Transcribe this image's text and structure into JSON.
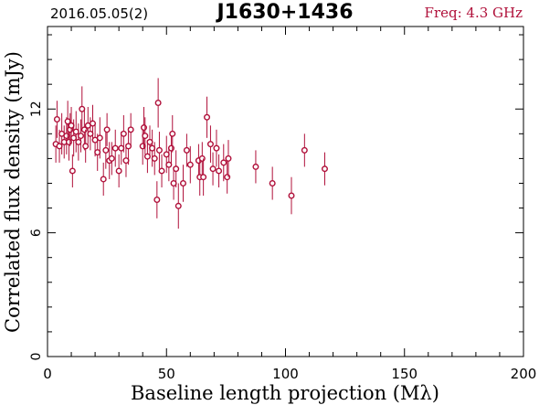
{
  "header": {
    "date": "2016.05.05(2)",
    "source": "J1630+1436",
    "freq": "Freq: 4.3 GHz"
  },
  "colors": {
    "marker": "#b0103a",
    "axis": "#000000",
    "freq_text": "#b0103a"
  },
  "chart_data": {
    "type": "scatter",
    "title": "J1630+1436",
    "xlabel": "Baseline length projection (Mλ)",
    "ylabel": "Correlated flux density (mJy)",
    "xlim": [
      0,
      200
    ],
    "ylim": [
      0,
      16
    ],
    "x_ticks": [
      "0",
      "50",
      "100",
      "150",
      "200"
    ],
    "y_ticks": [
      "0",
      "6",
      "12"
    ],
    "grid": false,
    "points": [
      {
        "x": 3.5,
        "y": 10.3,
        "err": 0.9
      },
      {
        "x": 4.0,
        "y": 11.5,
        "err": 0.9
      },
      {
        "x": 5.0,
        "y": 10.2,
        "err": 0.8
      },
      {
        "x": 6.0,
        "y": 10.8,
        "err": 1.0
      },
      {
        "x": 7.0,
        "y": 10.4,
        "err": 0.8
      },
      {
        "x": 8.0,
        "y": 10.7,
        "err": 0.9
      },
      {
        "x": 8.5,
        "y": 11.4,
        "err": 1.0
      },
      {
        "x": 9.0,
        "y": 10.4,
        "err": 0.9
      },
      {
        "x": 9.5,
        "y": 11.0,
        "err": 0.8
      },
      {
        "x": 10.0,
        "y": 11.2,
        "err": 0.9
      },
      {
        "x": 10.5,
        "y": 9.0,
        "err": 0.8
      },
      {
        "x": 11.0,
        "y": 10.6,
        "err": 0.9
      },
      {
        "x": 12.0,
        "y": 10.9,
        "err": 1.0
      },
      {
        "x": 13.0,
        "y": 10.4,
        "err": 0.9
      },
      {
        "x": 14.0,
        "y": 10.7,
        "err": 0.8
      },
      {
        "x": 14.5,
        "y": 12.0,
        "err": 1.1
      },
      {
        "x": 15.5,
        "y": 11.0,
        "err": 1.0
      },
      {
        "x": 16.0,
        "y": 10.2,
        "err": 0.8
      },
      {
        "x": 17.0,
        "y": 11.2,
        "err": 0.9
      },
      {
        "x": 18.0,
        "y": 10.8,
        "err": 0.8
      },
      {
        "x": 19.0,
        "y": 11.3,
        "err": 0.9
      },
      {
        "x": 20.0,
        "y": 10.5,
        "err": 0.8
      },
      {
        "x": 21.0,
        "y": 9.9,
        "err": 0.9
      },
      {
        "x": 22.0,
        "y": 10.6,
        "err": 1.0
      },
      {
        "x": 23.5,
        "y": 8.6,
        "err": 0.8
      },
      {
        "x": 24.5,
        "y": 10.0,
        "err": 0.9
      },
      {
        "x": 25.0,
        "y": 11.0,
        "err": 0.8
      },
      {
        "x": 26.0,
        "y": 9.5,
        "err": 0.9
      },
      {
        "x": 27.0,
        "y": 9.6,
        "err": 0.8
      },
      {
        "x": 28.5,
        "y": 10.1,
        "err": 0.9
      },
      {
        "x": 30.0,
        "y": 9.0,
        "err": 0.8
      },
      {
        "x": 31.0,
        "y": 10.1,
        "err": 0.8
      },
      {
        "x": 32.0,
        "y": 10.8,
        "err": 0.9
      },
      {
        "x": 33.0,
        "y": 9.5,
        "err": 0.8
      },
      {
        "x": 34.0,
        "y": 10.2,
        "err": 0.9
      },
      {
        "x": 35.0,
        "y": 11.0,
        "err": 0.8
      },
      {
        "x": 40.0,
        "y": 10.2,
        "err": 0.9
      },
      {
        "x": 40.5,
        "y": 11.1,
        "err": 1.0
      },
      {
        "x": 41.0,
        "y": 10.7,
        "err": 0.9
      },
      {
        "x": 42.0,
        "y": 9.7,
        "err": 0.8
      },
      {
        "x": 43.0,
        "y": 10.4,
        "err": 0.8
      },
      {
        "x": 44.0,
        "y": 10.1,
        "err": 0.9
      },
      {
        "x": 45.0,
        "y": 9.6,
        "err": 0.8
      },
      {
        "x": 46.0,
        "y": 7.6,
        "err": 0.9
      },
      {
        "x": 46.5,
        "y": 12.3,
        "err": 1.2
      },
      {
        "x": 47.0,
        "y": 10.0,
        "err": 0.9
      },
      {
        "x": 48.0,
        "y": 9.0,
        "err": 0.8
      },
      {
        "x": 50.0,
        "y": 9.8,
        "err": 0.9
      },
      {
        "x": 51.0,
        "y": 9.3,
        "err": 0.8
      },
      {
        "x": 52.0,
        "y": 10.1,
        "err": 0.8
      },
      {
        "x": 52.5,
        "y": 10.8,
        "err": 0.9
      },
      {
        "x": 53.0,
        "y": 8.4,
        "err": 0.8
      },
      {
        "x": 54.0,
        "y": 9.1,
        "err": 0.9
      },
      {
        "x": 55.0,
        "y": 7.3,
        "err": 1.1
      },
      {
        "x": 57.0,
        "y": 8.4,
        "err": 0.9
      },
      {
        "x": 58.5,
        "y": 10.0,
        "err": 0.8
      },
      {
        "x": 60.0,
        "y": 9.3,
        "err": 0.9
      },
      {
        "x": 63.5,
        "y": 9.5,
        "err": 0.8
      },
      {
        "x": 64.0,
        "y": 8.7,
        "err": 0.9
      },
      {
        "x": 65.0,
        "y": 9.6,
        "err": 0.8
      },
      {
        "x": 65.5,
        "y": 8.7,
        "err": 0.9
      },
      {
        "x": 67.0,
        "y": 11.6,
        "err": 1.0
      },
      {
        "x": 68.5,
        "y": 10.3,
        "err": 0.9
      },
      {
        "x": 69.5,
        "y": 9.1,
        "err": 0.8
      },
      {
        "x": 71.0,
        "y": 10.1,
        "err": 0.9
      },
      {
        "x": 72.0,
        "y": 9.0,
        "err": 0.8
      },
      {
        "x": 74.0,
        "y": 9.4,
        "err": 0.9
      },
      {
        "x": 75.5,
        "y": 8.7,
        "err": 0.8
      },
      {
        "x": 76.0,
        "y": 9.6,
        "err": 0.9
      },
      {
        "x": 87.5,
        "y": 9.2,
        "err": 0.8
      },
      {
        "x": 94.5,
        "y": 8.4,
        "err": 0.8
      },
      {
        "x": 102.5,
        "y": 7.8,
        "err": 0.9
      },
      {
        "x": 108.0,
        "y": 10.0,
        "err": 0.8
      },
      {
        "x": 116.5,
        "y": 9.1,
        "err": 0.8
      }
    ]
  }
}
